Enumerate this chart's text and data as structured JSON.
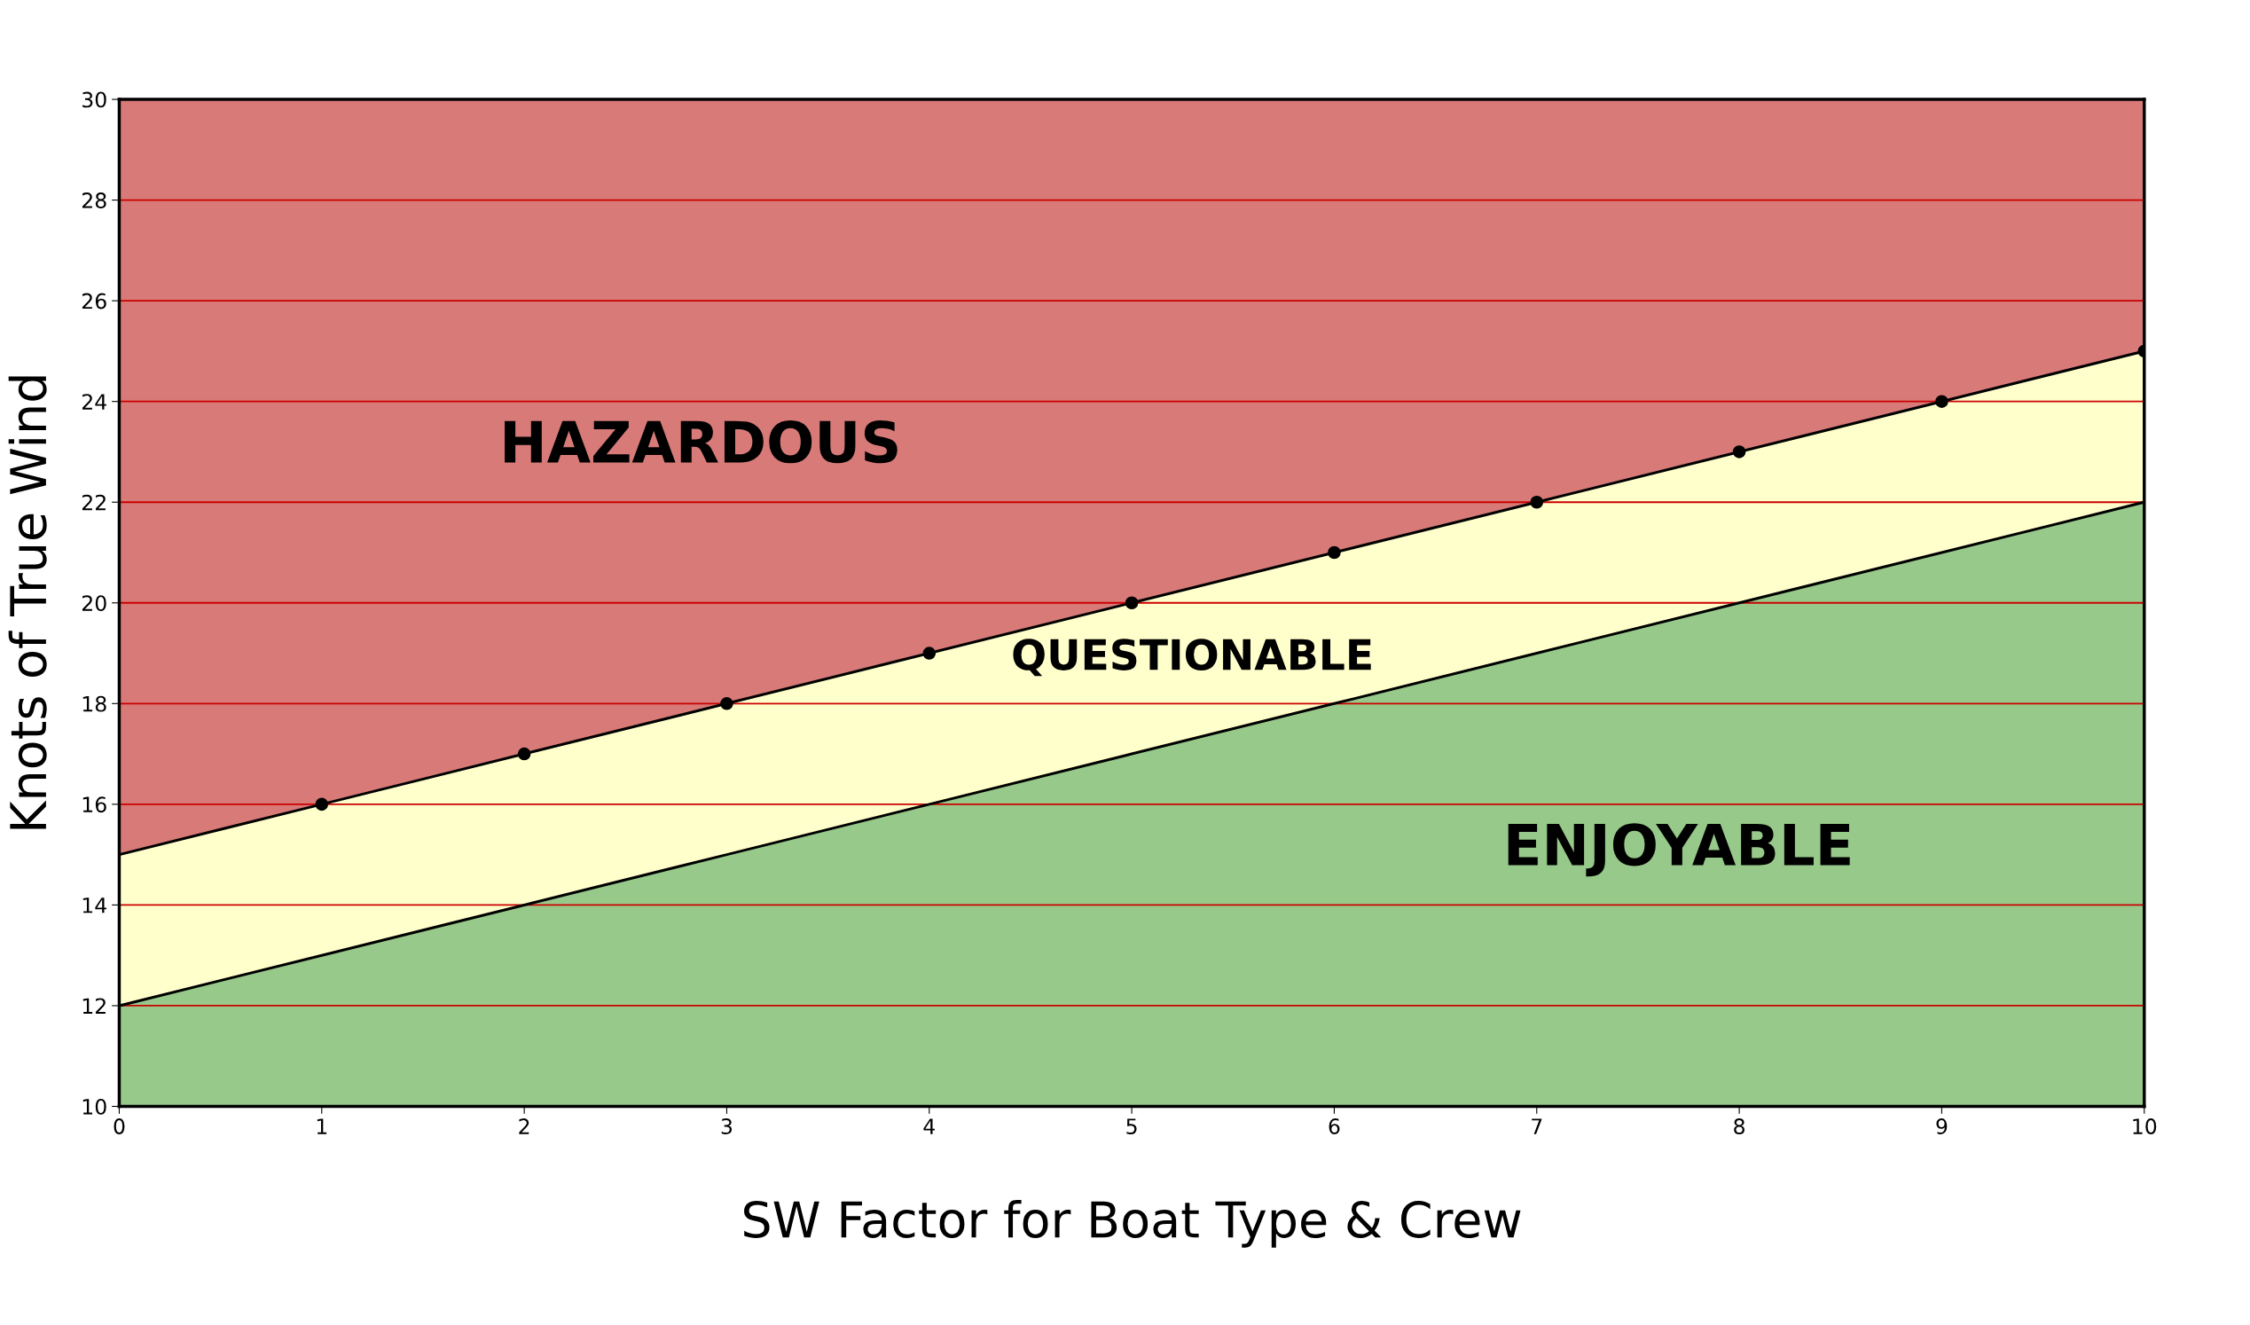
{
  "chart_data": {
    "type": "area",
    "xlabel": "SW Factor for Boat Type & Crew",
    "ylabel": "Knots of True Wind",
    "x": [
      0,
      1,
      2,
      3,
      4,
      5,
      6,
      7,
      8,
      9,
      10
    ],
    "series": [
      {
        "color": "#ffffcc",
        "values": [
          15,
          16,
          17,
          18,
          19,
          20,
          21,
          22,
          23,
          24,
          25
        ]
      },
      {
        "color": "#97c98a",
        "values": [
          12,
          13,
          14,
          15,
          16,
          17,
          18,
          19,
          20,
          21,
          22
        ]
      },
      {
        "type": "scatter",
        "color": "#000000",
        "x": [
          1,
          2,
          3,
          4,
          5,
          6,
          7,
          8,
          9,
          10
        ],
        "values": [
          16,
          17,
          18,
          19,
          20,
          21,
          22,
          23,
          24,
          25
        ]
      }
    ],
    "xlim": [
      0,
      10
    ],
    "xticks": [
      0,
      1,
      2,
      3,
      4,
      5,
      6,
      7,
      8,
      9,
      10
    ],
    "ylim": [
      10,
      30
    ],
    "yticks": [
      10,
      12,
      14,
      16,
      18,
      20,
      22,
      24,
      26,
      28,
      30
    ],
    "grid": "y",
    "legend": false,
    "annotations": [
      "HAZARDOUS",
      "QUESTIONABLE",
      "ENJOYABLE"
    ]
  }
}
